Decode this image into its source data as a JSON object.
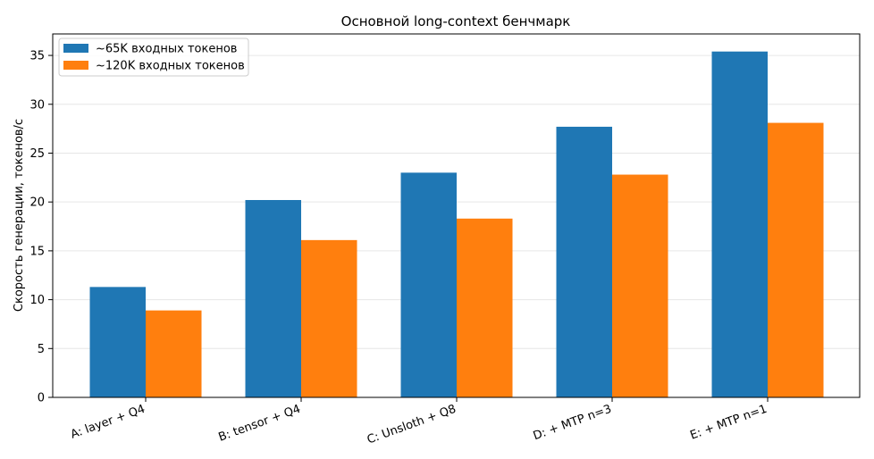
{
  "chart_data": {
    "type": "bar",
    "title": "Основной long-context бенчмарк",
    "xlabel": "",
    "ylabel": "Скорость генерации, токенов/с",
    "categories": [
      "A: layer + Q4",
      "B: tensor + Q4",
      "C: Unsloth + Q8",
      "D: + MTP n=3",
      "E: + MTP n=1"
    ],
    "series": [
      {
        "name": "~65K входных токенов",
        "color": "#1f77b4",
        "values": [
          11.3,
          20.2,
          23.0,
          27.7,
          35.4
        ]
      },
      {
        "name": "~120K входных токенов",
        "color": "#ff7f0e",
        "values": [
          8.9,
          16.1,
          18.3,
          22.8,
          28.1
        ]
      }
    ],
    "ylim": [
      0,
      37.2
    ],
    "yticks": [
      0,
      5,
      10,
      15,
      20,
      25,
      30,
      35
    ],
    "grid": "horizontal",
    "legend_position": "top-left"
  }
}
